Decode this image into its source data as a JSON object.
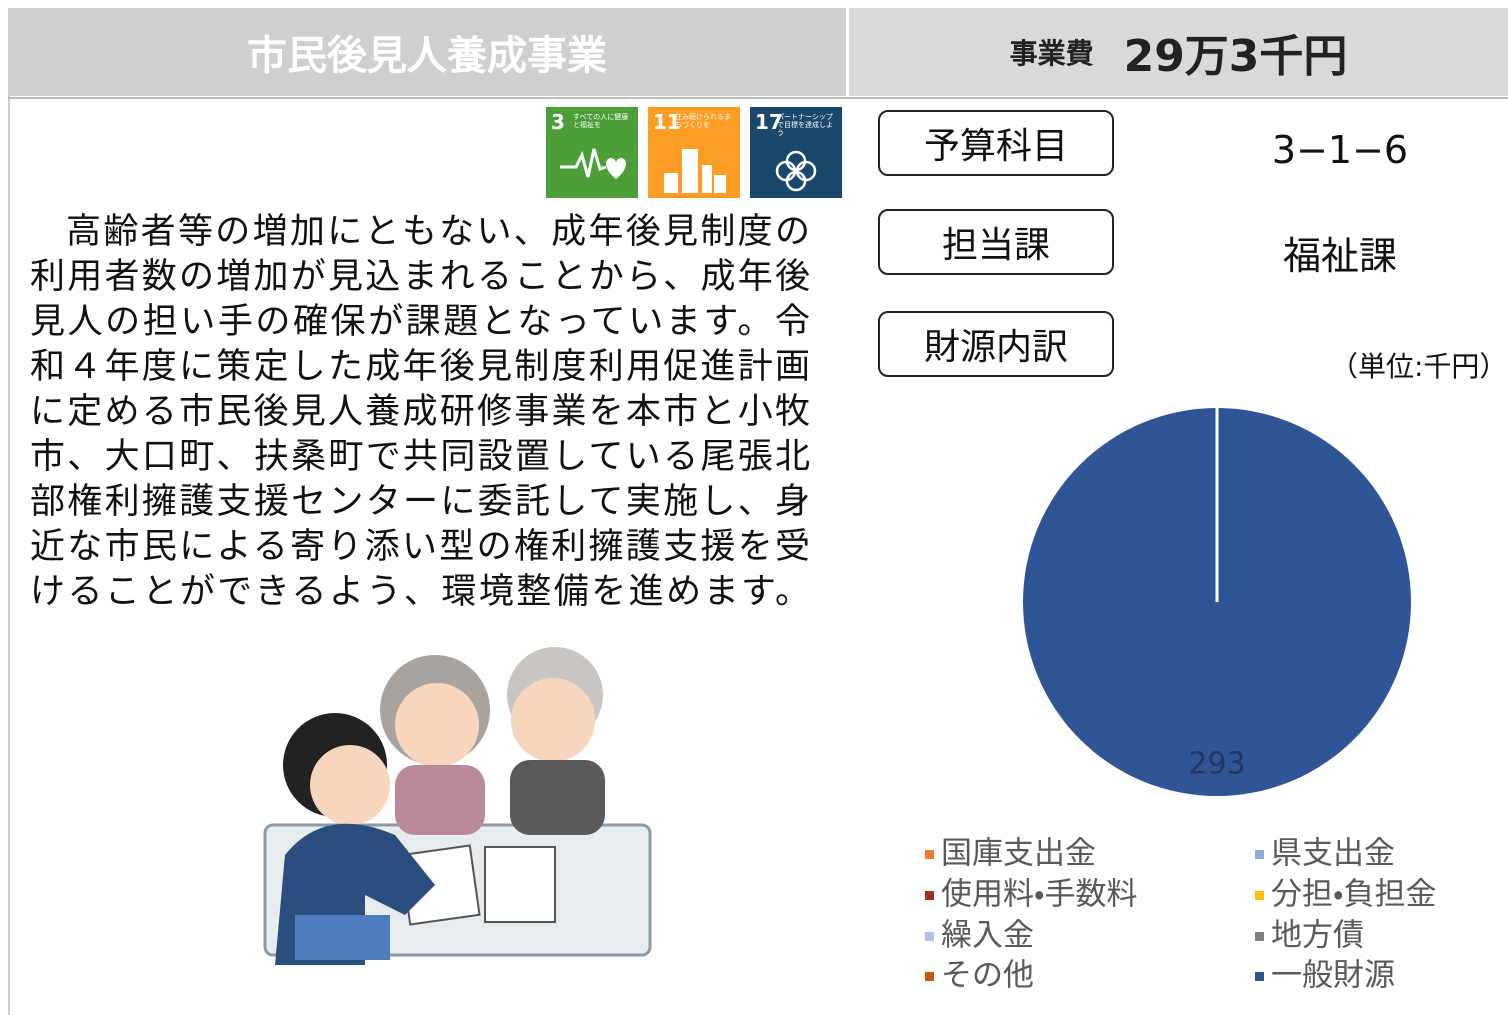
{
  "header": {
    "title": "市民後見人養成事業",
    "cost_label": "事業費",
    "cost": "29万3千円"
  },
  "sdg_icons": [
    {
      "number": "3",
      "caption": "すべての人に健康と福祉を"
    },
    {
      "number": "11",
      "caption": "住み続けられるまちづくりを"
    },
    {
      "number": "17",
      "caption": "パートナーシップで目標を達成しよう"
    }
  ],
  "body": {
    "lines": [
      "高齢者等の増加にともない、成年後見制度の",
      "利用者数の増加が見込まれることから、成年後",
      "見人の担い手の確保が課題となっています。令",
      "和４年度に策定した成年後見制度利用促進計画",
      "に定める市民後見人養成研修事業を本市と小牧",
      "市、大口町、扶桑町で共同設置している尾張北",
      "部権利擁護支援センターに委託して実施し、身",
      "近な市民による寄り添い型の権利擁護支援を受",
      "けることができるよう、環境整備を進めます。"
    ]
  },
  "info": {
    "budget_item": {
      "label": "予算科目",
      "value": "3−1−6"
    },
    "department": {
      "label": "担当課",
      "value": "福祉課"
    },
    "funding_label": "財源内訳",
    "unit": "（単位:千円）"
  },
  "chart_data": {
    "type": "pie",
    "categories": [
      "国庫支出金",
      "県支出金",
      "使用料・手数料",
      "分担・負担金",
      "繰入金",
      "地方債",
      "その他",
      "一般財源"
    ],
    "values": [
      0,
      0,
      0,
      0,
      0,
      0,
      0,
      293
    ],
    "colors": [
      "#ed7d31",
      "#8faadc",
      "#9e3124",
      "#ffc000",
      "#b4c0dc",
      "#7f7f7f",
      "#c55a11",
      "#2f5597"
    ],
    "legend": "bottom"
  }
}
